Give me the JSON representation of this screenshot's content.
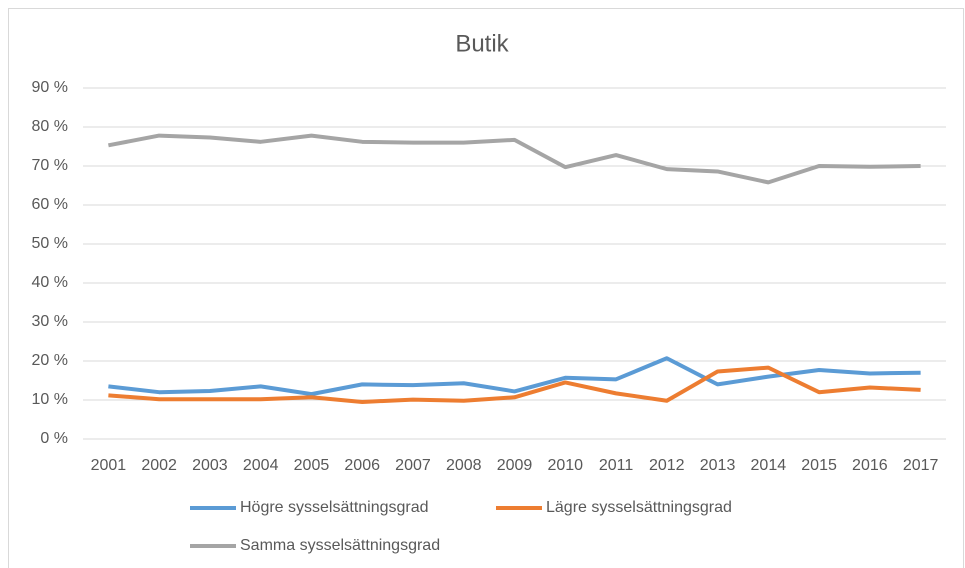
{
  "chart_data": {
    "type": "line",
    "title": "Butik",
    "categories": [
      "2001",
      "2002",
      "2003",
      "2004",
      "2005",
      "2006",
      "2007",
      "2008",
      "2009",
      "2010",
      "2011",
      "2012",
      "2013",
      "2014",
      "2015",
      "2016",
      "2017"
    ],
    "series": [
      {
        "name": "Högre sysselsättningsgrad",
        "color": "#5b9bd5",
        "values": [
          13.5,
          12,
          12.3,
          13.5,
          11.5,
          14,
          13.8,
          14.3,
          12.2,
          15.7,
          15.3,
          20.7,
          14,
          16,
          17.7,
          16.8,
          17
        ]
      },
      {
        "name": "Lägre sysselsättningsgrad",
        "color": "#ed7d31",
        "values": [
          11.2,
          10.2,
          10.2,
          10.2,
          10.7,
          9.5,
          10.1,
          9.8,
          10.7,
          14.5,
          11.7,
          9.8,
          17.3,
          18.3,
          12,
          13.2,
          12.6
        ]
      },
      {
        "name": "Samma sysselsättningsgrad",
        "color": "#a5a5a5",
        "values": [
          75.3,
          77.8,
          77.3,
          76.2,
          77.8,
          76.2,
          76,
          76,
          76.7,
          69.7,
          72.8,
          69.2,
          68.6,
          65.8,
          70,
          69.8,
          70
        ]
      }
    ],
    "ylim": [
      0,
      90
    ],
    "yticks": [
      {
        "value": 0,
        "label": "0 %"
      },
      {
        "value": 10,
        "label": "10 %"
      },
      {
        "value": 20,
        "label": "20 %"
      },
      {
        "value": 30,
        "label": "30 %"
      },
      {
        "value": 40,
        "label": "40 %"
      },
      {
        "value": 50,
        "label": "50 %"
      },
      {
        "value": 60,
        "label": "60 %"
      },
      {
        "value": 70,
        "label": "70 %"
      },
      {
        "value": 80,
        "label": "80 %"
      },
      {
        "value": 90,
        "label": "90 %"
      }
    ],
    "grid": true,
    "legend": "bottom"
  }
}
